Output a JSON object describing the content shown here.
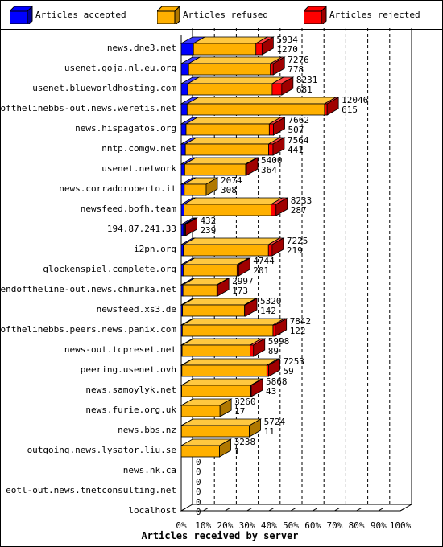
{
  "legend": {
    "accepted": "Articles accepted",
    "refused": "Articles refused",
    "rejected": "Articles rejected"
  },
  "colors": {
    "accepted": "#0000ff",
    "refused": "#ffb000",
    "rejected": "#ff0000"
  },
  "chart_data": {
    "type": "bar",
    "orientation": "horizontal",
    "stacked": true,
    "xlabel": "Articles received by server",
    "xlim": [
      0,
      100
    ],
    "x_unit": "%",
    "x_ticks": [
      "0%",
      "10%",
      "20%",
      "30%",
      "40%",
      "50%",
      "60%",
      "70%",
      "80%",
      "90%",
      "100%"
    ],
    "grid": true,
    "legend_position": "top",
    "series_names": [
      "Articles accepted",
      "Articles refused",
      "Articles rejected"
    ],
    "rows": [
      {
        "name": "news.dne3.net",
        "total": "5934",
        "accepted": "1270",
        "pct": {
          "accepted": 5.6,
          "refused": 28.5,
          "rejected": 2.8
        }
      },
      {
        "name": "usenet.goja.nl.eu.org",
        "total": "7276",
        "accepted": "778",
        "pct": {
          "accepted": 3.4,
          "refused": 37.3,
          "rejected": 1.3
        }
      },
      {
        "name": "usenet.blueworldhosting.com",
        "total": "8231",
        "accepted": "681",
        "pct": {
          "accepted": 3.0,
          "refused": 38.5,
          "rejected": 4.4
        }
      },
      {
        "name": "endofthelinebbs-out.news.weretis.net",
        "total": "12046",
        "accepted": "615",
        "pct": {
          "accepted": 2.7,
          "refused": 62.7,
          "rejected": 1.2
        }
      },
      {
        "name": "news.hispagatos.org",
        "total": "7662",
        "accepted": "507",
        "pct": {
          "accepted": 2.2,
          "refused": 38.0,
          "rejected": 1.9
        }
      },
      {
        "name": "nntp.comgw.net",
        "total": "7564",
        "accepted": "441",
        "pct": {
          "accepted": 1.9,
          "refused": 38.0,
          "rejected": 2.0
        }
      },
      {
        "name": "usenet.network",
        "total": "5400",
        "accepted": "364",
        "pct": {
          "accepted": 1.6,
          "refused": 27.8,
          "rejected": 0.4
        }
      },
      {
        "name": "news.corradoroberto.it",
        "total": "2074",
        "accepted": "308",
        "pct": {
          "accepted": 1.4,
          "refused": 10.0,
          "rejected": 0.0
        }
      },
      {
        "name": "newsfeed.bofh.team",
        "total": "8233",
        "accepted": "287",
        "pct": {
          "accepted": 1.3,
          "refused": 39.7,
          "rejected": 2.3
        }
      },
      {
        "name": "194.87.241.33",
        "total": "432",
        "accepted": "239",
        "pct": {
          "accepted": 1.1,
          "refused": 0.6,
          "rejected": 0.3
        }
      },
      {
        "name": "i2pn.org",
        "total": "7225",
        "accepted": "219",
        "pct": {
          "accepted": 1.0,
          "refused": 38.8,
          "rejected": 1.7
        }
      },
      {
        "name": "glockenspiel.complete.org",
        "total": "4744",
        "accepted": "201",
        "pct": {
          "accepted": 0.9,
          "refused": 24.6,
          "rejected": 0.7
        }
      },
      {
        "name": "endoftheline-out.news.chmurka.net",
        "total": "2997",
        "accepted": "173",
        "pct": {
          "accepted": 0.8,
          "refused": 15.5,
          "rejected": 0.3
        }
      },
      {
        "name": "newsfeed.xs3.de",
        "total": "5320",
        "accepted": "142",
        "pct": {
          "accepted": 0.6,
          "refused": 28.3,
          "rejected": 0.5
        }
      },
      {
        "name": "endofthelinebbs.peers.news.panix.com",
        "total": "7842",
        "accepted": "122",
        "pct": {
          "accepted": 0.5,
          "refused": 41.4,
          "rejected": 1.0
        }
      },
      {
        "name": "news-out.tcpreset.net",
        "total": "5998",
        "accepted": "89",
        "pct": {
          "accepted": 0.4,
          "refused": 31.1,
          "rejected": 1.5
        }
      },
      {
        "name": "peering.usenet.ovh",
        "total": "7253",
        "accepted": "59",
        "pct": {
          "accepted": 0.3,
          "refused": 38.8,
          "rejected": 0.8
        }
      },
      {
        "name": "news.samoylyk.net",
        "total": "5868",
        "accepted": "43",
        "pct": {
          "accepted": 0.2,
          "refused": 31.5,
          "rejected": 0.3
        }
      },
      {
        "name": "news.furie.org.uk",
        "total": "3260",
        "accepted": "17",
        "pct": {
          "accepted": 0.1,
          "refused": 17.6,
          "rejected": 0.0
        }
      },
      {
        "name": "news.bbs.nz",
        "total": "5724",
        "accepted": "11",
        "pct": {
          "accepted": 0.1,
          "refused": 31.0,
          "rejected": 0.0
        }
      },
      {
        "name": "outgoing.news.lysator.liu.se",
        "total": "3238",
        "accepted": "1",
        "pct": {
          "accepted": 0.0,
          "refused": 17.5,
          "rejected": 0.0
        }
      },
      {
        "name": "news.nk.ca",
        "total": "0",
        "accepted": "0",
        "pct": {
          "accepted": 0,
          "refused": 0,
          "rejected": 0
        }
      },
      {
        "name": "eotl-out.news.tnetconsulting.net",
        "total": "0",
        "accepted": "0",
        "pct": {
          "accepted": 0,
          "refused": 0,
          "rejected": 0
        }
      },
      {
        "name": "localhost",
        "total": "0",
        "accepted": "0",
        "pct": {
          "accepted": 0,
          "refused": 0,
          "rejected": 0
        }
      }
    ]
  }
}
